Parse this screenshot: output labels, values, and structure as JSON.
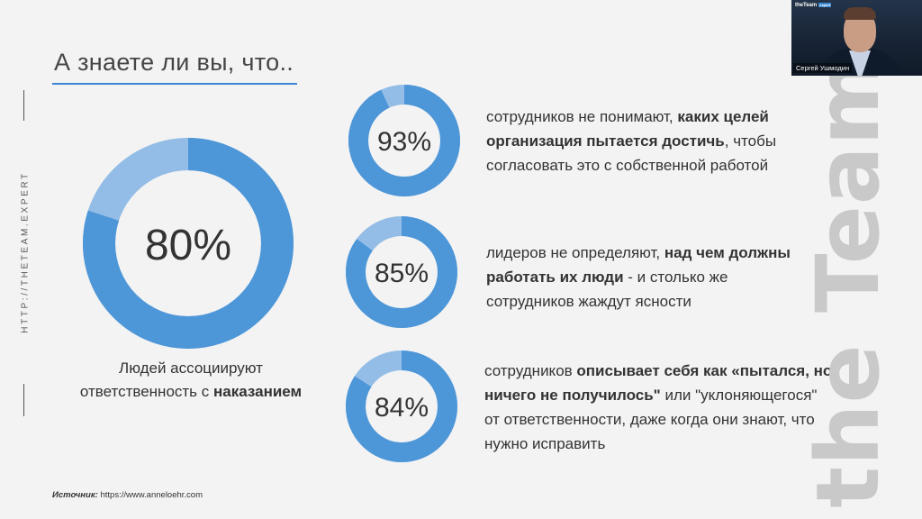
{
  "slide": {
    "title": "А знаете ли вы, что..",
    "side_url": "HTTP://THETEAM.EXPERT",
    "watermark": "the Team",
    "source_label": "Источник:",
    "source_url": "https://www.anneloehr.com"
  },
  "colors": {
    "donut_main": "#4d96d8",
    "donut_light": "#93bde6",
    "accent_line": "#3b87d1"
  },
  "big_donut": {
    "value": 80,
    "label": "80%",
    "caption_line1": "Людей ассоциируют",
    "caption_line2_plain": "ответственность с ",
    "caption_line2_bold": "наказанием"
  },
  "stats": [
    {
      "value": 93,
      "label": "93%",
      "l1a": "сотрудников не понимают, ",
      "l1b": "каких целей",
      "l2a": "организация пытается достичь",
      "l2b": ", чтобы",
      "l3": "согласовать это с собственной работой",
      "l4": ""
    },
    {
      "value": 85,
      "label": "85%",
      "l1a": "лидеров не определяют, ",
      "l1b": "над чем должны",
      "l2a": "работать их люди",
      "l2b": " - и столько же",
      "l3": "сотрудников жаждут ясности",
      "l4": ""
    },
    {
      "value": 84,
      "label": "84%",
      "l1a": "сотрудников ",
      "l1b": "описывает себя как «пытался, но",
      "l2a": "ничего не получилось\"",
      "l2b": " или \"уклоняющегося\"",
      "l3": "от ответственности, даже когда они знают, что",
      "l4": "нужно исправить"
    }
  ],
  "webcam": {
    "logo": "theTeam",
    "logo_badge": "expert",
    "name": "Сергей Ушмодин"
  }
}
